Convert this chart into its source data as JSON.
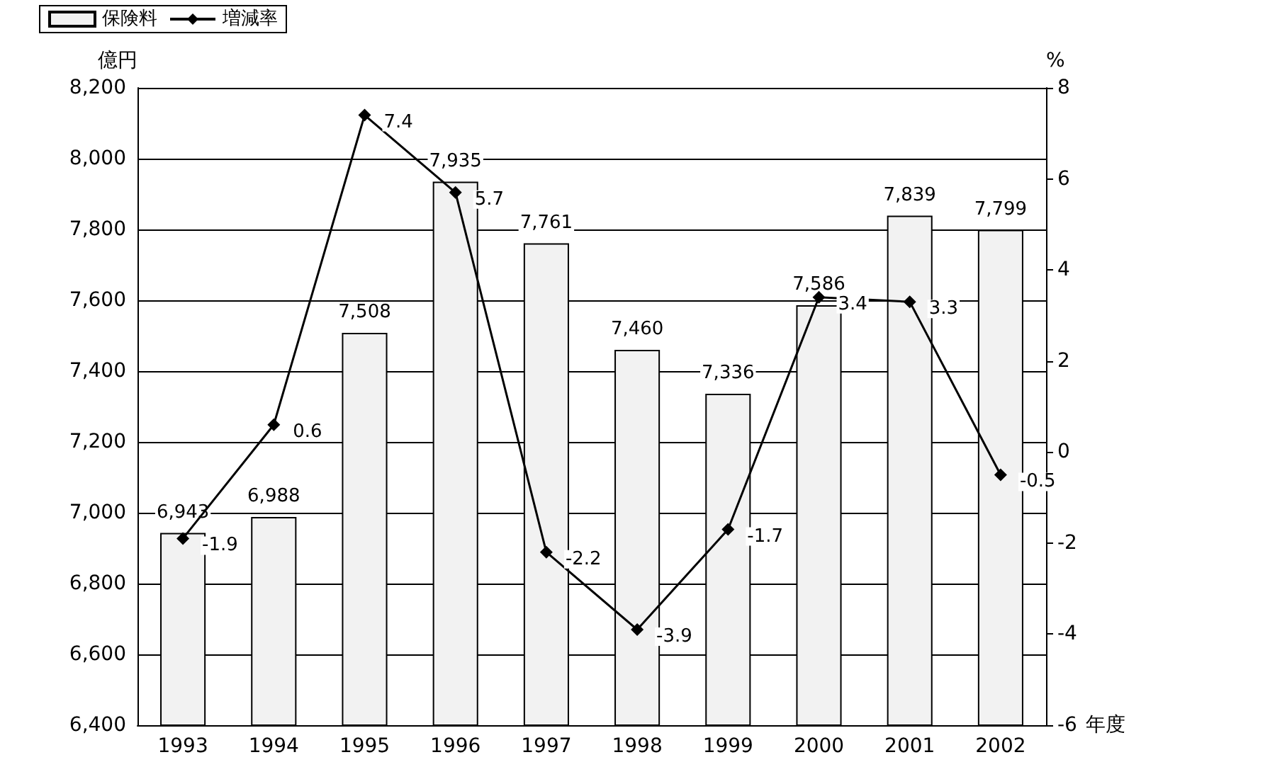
{
  "chart_data": {
    "type": "bar",
    "ylabel": "億円",
    "y2label": "%",
    "xlabel": "年度",
    "categories": [
      "1993",
      "1994",
      "1995",
      "1996",
      "1997",
      "1998",
      "1999",
      "2000",
      "2001",
      "2002"
    ],
    "series": [
      {
        "name": "保険料",
        "color": "#f2f2f2",
        "values": [
          6943,
          6988,
          7508,
          7935,
          7761,
          7460,
          7336,
          7586,
          7839,
          7799
        ],
        "value_labels": [
          "6,943",
          "6,988",
          "7,508",
          "7,935",
          "7,761",
          "7,460",
          "7,336",
          "7,586",
          "7,839",
          "7,799"
        ]
      },
      {
        "name": "増減率",
        "type": "line",
        "axis": "y2",
        "color": "#000000",
        "marker": "diamond",
        "values": [
          -1.9,
          0.6,
          7.4,
          5.7,
          -2.2,
          -3.9,
          -1.7,
          3.4,
          3.3,
          -0.5
        ],
        "value_labels": [
          "-1.9",
          "0.6",
          "7.4",
          "5.7",
          "-2.2",
          "-3.9",
          "-1.7",
          "3.4",
          "3.3",
          "-0.5"
        ]
      }
    ],
    "ylim": [
      6400,
      8200
    ],
    "yticks": [
      {
        "value": 6400,
        "label": "6,400"
      },
      {
        "value": 6600,
        "label": "6,600"
      },
      {
        "value": 6800,
        "label": "6,800"
      },
      {
        "value": 7000,
        "label": "7,000"
      },
      {
        "value": 7200,
        "label": "7,200"
      },
      {
        "value": 7400,
        "label": "7,400"
      },
      {
        "value": 7600,
        "label": "7,600"
      },
      {
        "value": 7800,
        "label": "7,800"
      },
      {
        "value": 8000,
        "label": "8,000"
      },
      {
        "value": 8200,
        "label": "8,200"
      }
    ],
    "y2lim": [
      -6,
      8
    ],
    "y2ticks": [
      -6,
      -4,
      -2,
      0,
      2,
      4,
      6,
      8
    ],
    "grid": "y",
    "legend": "top left",
    "line_style": "solid"
  }
}
